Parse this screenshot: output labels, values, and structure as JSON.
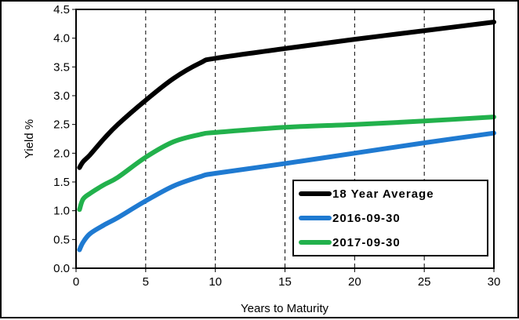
{
  "chart_data": {
    "type": "line",
    "title": "",
    "xlabel": "Years to Maturity",
    "ylabel": "Yield %",
    "xlim": [
      0,
      30
    ],
    "ylim": [
      0,
      4.5
    ],
    "x_ticks": [
      0,
      5,
      10,
      15,
      20,
      25,
      30
    ],
    "y_ticks": [
      0.0,
      0.5,
      1.0,
      1.5,
      2.0,
      2.5,
      3.0,
      3.5,
      4.0,
      4.5
    ],
    "x_tick_labels": [
      "0",
      "5",
      "10",
      "15",
      "20",
      "25",
      "30"
    ],
    "y_tick_labels": [
      "0.0",
      "0.5",
      "1.0",
      "1.5",
      "2.0",
      "2.5",
      "3.0",
      "3.5",
      "4.0",
      "4.5"
    ],
    "grid": "vertical dashed",
    "legend_position": "bottom-right",
    "series": [
      {
        "name": "18 Year Average",
        "color": "#000000",
        "x": [
          0.25,
          0.5,
          1,
          2,
          3,
          5,
          7,
          9,
          10,
          15,
          20,
          25,
          30
        ],
        "y": [
          1.75,
          1.85,
          1.97,
          2.25,
          2.5,
          2.92,
          3.3,
          3.58,
          3.65,
          3.82,
          3.98,
          4.13,
          4.28
        ]
      },
      {
        "name": "2016-09-30",
        "color": "#1f7ad1",
        "x": [
          0.25,
          0.5,
          1,
          2,
          3,
          5,
          7,
          9,
          10,
          15,
          20,
          25,
          30
        ],
        "y": [
          0.32,
          0.45,
          0.6,
          0.75,
          0.88,
          1.17,
          1.43,
          1.6,
          1.65,
          1.82,
          2.0,
          2.18,
          2.35
        ]
      },
      {
        "name": "2017-09-30",
        "color": "#22b14c",
        "x": [
          0.25,
          0.5,
          1,
          2,
          3,
          5,
          7,
          9,
          10,
          15,
          20,
          25,
          30
        ],
        "y": [
          1.02,
          1.2,
          1.3,
          1.45,
          1.58,
          1.93,
          2.2,
          2.33,
          2.36,
          2.45,
          2.5,
          2.56,
          2.63
        ]
      }
    ]
  }
}
